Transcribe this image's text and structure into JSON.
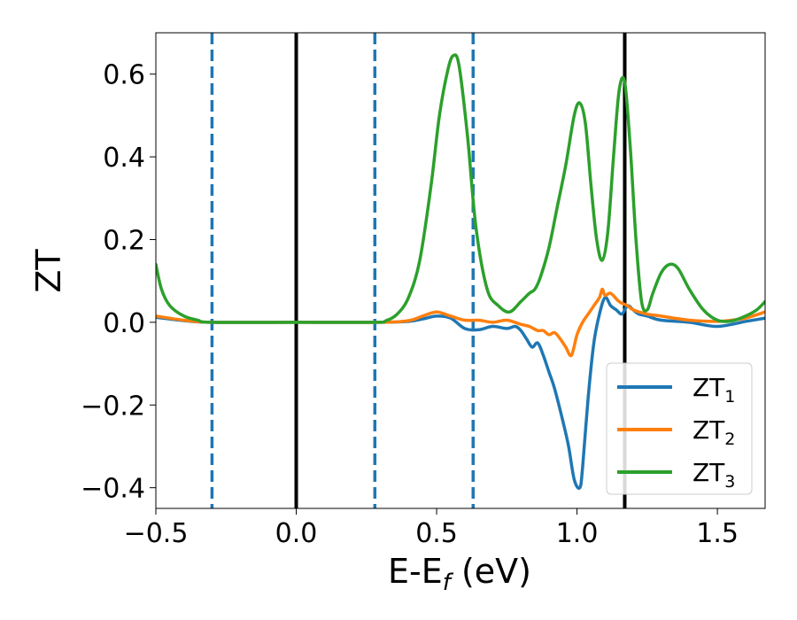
{
  "chart_data": {
    "type": "line",
    "xlabel": {
      "main": "E-E",
      "sub": "f",
      "unit": " (eV)"
    },
    "ylabel": "ZT",
    "xlim": [
      -0.5,
      1.67
    ],
    "ylim": [
      -0.45,
      0.7
    ],
    "x_ticks": [
      -0.5,
      0.0,
      0.5,
      1.0,
      1.5
    ],
    "x_tick_labels": [
      "−0.5",
      "0.0",
      "0.5",
      "1.0",
      "1.5"
    ],
    "y_ticks": [
      -0.4,
      -0.2,
      0.0,
      0.2,
      0.4,
      0.6
    ],
    "y_tick_labels": [
      "−0.4",
      "−0.2",
      "0.0",
      "0.2",
      "0.4",
      "0.6"
    ],
    "grid": false,
    "legend_position": "lower-right",
    "vlines": [
      {
        "x": -0.3,
        "style": "dashed",
        "color": "#1f77b4"
      },
      {
        "x": 0.0,
        "style": "solid",
        "color": "#000000"
      },
      {
        "x": 0.28,
        "style": "dashed",
        "color": "#1f77b4"
      },
      {
        "x": 0.63,
        "style": "dashed",
        "color": "#1f77b4"
      },
      {
        "x": 1.17,
        "style": "solid",
        "color": "#000000"
      }
    ],
    "series": [
      {
        "name": "ZT",
        "sub": "1",
        "color": "#1f77b4",
        "x": [
          -0.5,
          -0.4,
          -0.3,
          0.0,
          0.3,
          0.4,
          0.45,
          0.5,
          0.55,
          0.6,
          0.65,
          0.7,
          0.75,
          0.78,
          0.8,
          0.82,
          0.84,
          0.86,
          0.88,
          0.9,
          0.92,
          0.95,
          0.97,
          0.99,
          1.01,
          1.02,
          1.04,
          1.06,
          1.08,
          1.1,
          1.12,
          1.14,
          1.16,
          1.18,
          1.2,
          1.22,
          1.25,
          1.3,
          1.4,
          1.5,
          1.6,
          1.67
        ],
        "y": [
          0.012,
          0.004,
          0.0,
          0.0,
          0.0,
          0.002,
          0.008,
          0.015,
          0.01,
          -0.015,
          -0.018,
          -0.01,
          -0.015,
          -0.01,
          -0.02,
          -0.04,
          -0.06,
          -0.05,
          -0.08,
          -0.12,
          -0.16,
          -0.24,
          -0.3,
          -0.38,
          -0.4,
          -0.35,
          -0.18,
          -0.05,
          0.02,
          0.06,
          0.04,
          0.03,
          0.02,
          0.04,
          0.03,
          0.02,
          0.015,
          0.005,
          0.0,
          -0.01,
          0.002,
          0.01
        ]
      },
      {
        "name": "ZT",
        "sub": "2",
        "color": "#ff7f0e",
        "x": [
          -0.5,
          -0.4,
          -0.3,
          0.0,
          0.3,
          0.4,
          0.45,
          0.5,
          0.55,
          0.6,
          0.65,
          0.7,
          0.75,
          0.8,
          0.83,
          0.86,
          0.88,
          0.9,
          0.92,
          0.94,
          0.96,
          0.98,
          1.0,
          1.02,
          1.04,
          1.06,
          1.08,
          1.09,
          1.1,
          1.12,
          1.15,
          1.18,
          1.2,
          1.25,
          1.3,
          1.4,
          1.5,
          1.55,
          1.6,
          1.67
        ],
        "y": [
          0.015,
          0.005,
          0.0,
          0.0,
          0.0,
          0.004,
          0.015,
          0.025,
          0.015,
          0.005,
          0.005,
          0.0,
          0.005,
          -0.005,
          -0.01,
          -0.02,
          -0.02,
          -0.03,
          -0.025,
          -0.04,
          -0.06,
          -0.08,
          -0.03,
          0.0,
          0.02,
          0.04,
          0.06,
          0.08,
          0.065,
          0.07,
          0.05,
          0.04,
          0.03,
          0.02,
          0.015,
          0.005,
          0.002,
          0.005,
          0.01,
          0.025
        ]
      },
      {
        "name": "ZT",
        "sub": "3",
        "color": "#2ca02c",
        "x": [
          -0.5,
          -0.48,
          -0.45,
          -0.4,
          -0.35,
          -0.3,
          0.0,
          0.28,
          0.32,
          0.36,
          0.4,
          0.44,
          0.48,
          0.51,
          0.54,
          0.56,
          0.58,
          0.61,
          0.64,
          0.68,
          0.72,
          0.76,
          0.8,
          0.83,
          0.85,
          0.87,
          0.9,
          0.93,
          0.96,
          0.99,
          1.01,
          1.03,
          1.05,
          1.07,
          1.09,
          1.11,
          1.13,
          1.15,
          1.17,
          1.19,
          1.21,
          1.23,
          1.25,
          1.27,
          1.3,
          1.33,
          1.36,
          1.4,
          1.45,
          1.5,
          1.55,
          1.6,
          1.64,
          1.67
        ],
        "y": [
          0.14,
          0.08,
          0.04,
          0.015,
          0.005,
          0.0,
          0.0,
          0.0,
          0.004,
          0.02,
          0.06,
          0.15,
          0.33,
          0.5,
          0.61,
          0.645,
          0.62,
          0.45,
          0.23,
          0.08,
          0.04,
          0.025,
          0.05,
          0.07,
          0.08,
          0.11,
          0.18,
          0.28,
          0.38,
          0.5,
          0.53,
          0.48,
          0.33,
          0.2,
          0.15,
          0.22,
          0.4,
          0.56,
          0.58,
          0.42,
          0.2,
          0.05,
          0.03,
          0.07,
          0.12,
          0.14,
          0.13,
          0.08,
          0.03,
          0.005,
          0.003,
          0.015,
          0.03,
          0.05
        ]
      }
    ]
  }
}
